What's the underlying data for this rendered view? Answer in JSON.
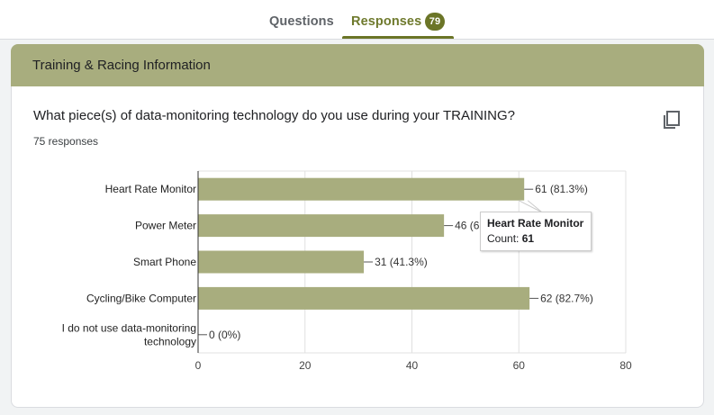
{
  "tabs": {
    "questions_label": "Questions",
    "responses_label": "Responses",
    "responses_count": "79"
  },
  "section": {
    "title": "Training & Racing Information"
  },
  "question": {
    "text": "What piece(s) of data-monitoring technology do you use during your TRAINING?",
    "response_count": "75 responses",
    "copy_icon": "copy-icon"
  },
  "tooltip": {
    "title": "Heart Rate Monitor",
    "label": "Count:",
    "value": "61"
  },
  "colors": {
    "bar": "#a8ad7e",
    "accent": "#6b7527"
  },
  "chart_data": {
    "type": "bar",
    "orientation": "horizontal",
    "categories": [
      [
        "Heart Rate Monitor"
      ],
      [
        "Power Meter"
      ],
      [
        "Smart Phone"
      ],
      [
        "Cycling/Bike Computer"
      ],
      [
        "I do not use data-monitoring",
        "technology"
      ]
    ],
    "values": [
      61,
      46,
      31,
      62,
      0
    ],
    "data_labels": [
      "61 (81.3%)",
      "46 (61.3%)",
      "31 (41.3%)",
      "62 (82.7%)",
      "0 (0%)"
    ],
    "xlim": [
      0,
      80
    ],
    "xticks": [
      "0",
      "20",
      "40",
      "60",
      "80"
    ],
    "grid": true
  }
}
